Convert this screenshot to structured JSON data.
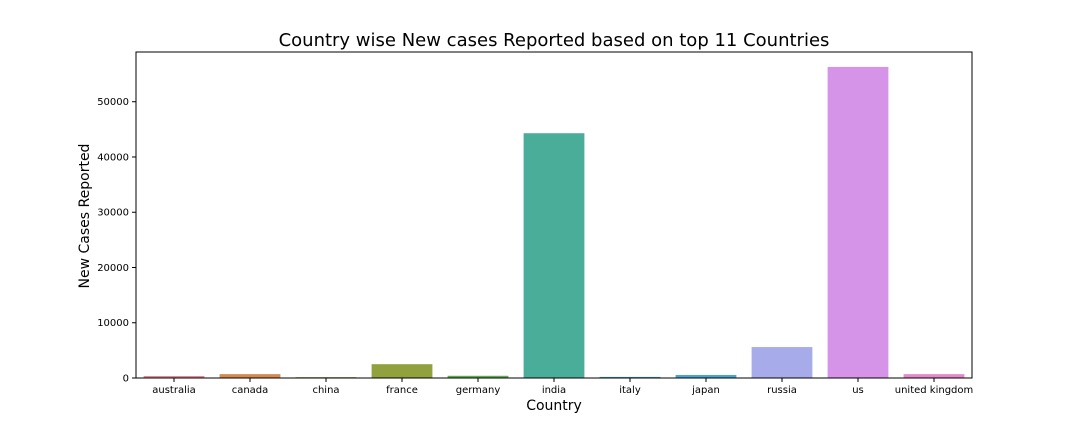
{
  "chart_data": {
    "type": "bar",
    "title": "Country wise New cases Reported based on top 11 Countries",
    "xlabel": "Country",
    "ylabel": "New Cases Reported",
    "ylim": [
      0,
      59000
    ],
    "yticks": [
      0,
      10000,
      20000,
      30000,
      40000,
      50000
    ],
    "grid": false,
    "legend": "none",
    "categories": [
      "australia",
      "canada",
      "china",
      "france",
      "germany",
      "india",
      "italy",
      "japan",
      "russia",
      "us",
      "united kingdom"
    ],
    "values": [
      350,
      700,
      150,
      2500,
      400,
      44300,
      200,
      550,
      5600,
      56300,
      700
    ],
    "colors": [
      "#e1848e",
      "#d5894f",
      "#b89c3c",
      "#91a13e",
      "#62aa55",
      "#4aad9a",
      "#4aa8b4",
      "#4ba3d0",
      "#a7abea",
      "#d694e8",
      "#e48ac9"
    ]
  }
}
